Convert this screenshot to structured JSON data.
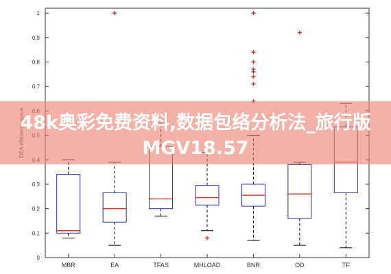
{
  "chart_data": {
    "type": "box",
    "title": "",
    "xlabel": "",
    "ylabel": "DEA efficiency score",
    "ylim": [
      0,
      1.02
    ],
    "yticks": [
      "0",
      "0.1",
      "0.2",
      "0.3",
      "0.4",
      "0.5",
      "0.6",
      "0.7",
      "0.8",
      "0.9",
      "1"
    ],
    "grid": false,
    "categories": [
      "MBR",
      "EA",
      "TFAS",
      "MHLOAD",
      "BNR",
      "OD",
      "TF"
    ],
    "series": [
      {
        "category": "MBR",
        "whisker_low": 0.08,
        "q1": 0.1,
        "median": 0.11,
        "q3": 0.34,
        "whisker_high": 0.4,
        "outliers": []
      },
      {
        "category": "EA",
        "whisker_low": 0.05,
        "q1": 0.145,
        "median": 0.2,
        "q3": 0.265,
        "whisker_high": 0.39,
        "outliers": [
          1.0
        ]
      },
      {
        "category": "TFAS",
        "whisker_low": 0.17,
        "q1": 0.2,
        "median": 0.24,
        "q3": 0.455,
        "whisker_high": 0.55,
        "outliers": []
      },
      {
        "category": "MHLOAD",
        "whisker_low": 0.11,
        "q1": 0.215,
        "median": 0.245,
        "q3": 0.295,
        "whisker_high": 0.43,
        "outliers": [
          0.08
        ]
      },
      {
        "category": "BNR",
        "whisker_low": 0.07,
        "q1": 0.21,
        "median": 0.255,
        "q3": 0.3,
        "whisker_high": 0.5,
        "outliers": [
          1.0,
          0.84,
          0.8,
          0.77,
          0.76,
          0.74,
          0.71,
          0.64
        ]
      },
      {
        "category": "OD",
        "whisker_low": 0.05,
        "q1": 0.16,
        "median": 0.26,
        "q3": 0.38,
        "whisker_high": 0.39,
        "outliers": [
          0.92
        ]
      },
      {
        "category": "TF",
        "whisker_low": 0.04,
        "q1": 0.265,
        "median": 0.39,
        "q3": 0.535,
        "whisker_high": 0.63,
        "outliers": []
      }
    ],
    "colors": {
      "box": "#2b2ba8",
      "median": "#c0392b",
      "whisker": "#000000",
      "outlier": "#c0392b"
    }
  },
  "watermark": {
    "text": "48k奥彩免费资料,数据包络分析法_旅行版MGV18.57",
    "color": "#ee8270"
  }
}
